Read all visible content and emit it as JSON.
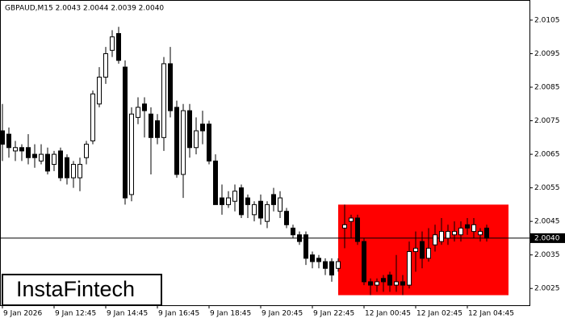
{
  "chart_data": {
    "type": "candlestick",
    "title": "GBPAUD,M15  2.0043 2.0044 2.0039 2.0040",
    "watermark": "InstaFintech",
    "categories": [
      "9 Jan 2026",
      null,
      null,
      null,
      null,
      null,
      null,
      null,
      "9 Jan 12:45",
      null,
      null,
      null,
      null,
      null,
      null,
      null,
      "9 Jan 14:45",
      null,
      null,
      null,
      null,
      null,
      null,
      null,
      "9 Jan 16:45",
      null,
      null,
      null,
      null,
      null,
      null,
      null,
      "9 Jan 18:45",
      null,
      null,
      null,
      null,
      null,
      null,
      null,
      "9 Jan 20:45",
      null,
      null,
      null,
      null,
      null,
      null,
      null,
      "9 Jan 22:45",
      null,
      null,
      null,
      null,
      null,
      null,
      null,
      "12 Jan 00:45",
      null,
      null,
      null,
      null,
      null,
      null,
      null,
      "12 Jan 02:45",
      null,
      null,
      null,
      null,
      null,
      null,
      null,
      "12 Jan 04:45",
      null,
      null,
      null
    ],
    "open": [
      2.0072,
      2.0071,
      2.0066,
      2.0067,
      2.0067,
      2.0065,
      2.0063,
      2.0065,
      2.0062,
      2.0066,
      2.0064,
      2.0058,
      2.0058,
      2.0064,
      2.0069,
      2.008,
      2.0088,
      2.0096,
      2.0101,
      2.0091,
      2.0053,
      2.0076,
      2.008,
      2.0077,
      2.0075,
      2.007,
      2.0092,
      2.0079,
      2.0059,
      2.0078,
      2.0067,
      2.0074,
      2.0074,
      2.0063,
      2.0052,
      2.005,
      2.0051,
      2.0055,
      2.0052,
      2.0047,
      2.0051,
      2.0045,
      2.0053,
      2.0048,
      2.0048,
      2.0043,
      2.0041,
      2.0041,
      2.0035,
      2.0034,
      2.0033,
      2.0033,
      2.0031,
      2.0043,
      2.0045,
      2.0046,
      2.0039,
      2.0027,
      2.0026,
      2.0028,
      2.0029,
      2.0026,
      2.0027,
      2.0026,
      2.0036,
      2.0039,
      2.0034,
      2.0038,
      2.0039,
      2.004,
      2.0041,
      2.0041,
      2.0044,
      2.0042,
      2.0041,
      2.0043
    ],
    "high": [
      2.008,
      2.0073,
      2.0069,
      2.0068,
      2.0071,
      2.0068,
      2.0068,
      2.0067,
      2.0066,
      2.0067,
      2.0065,
      2.0063,
      2.0064,
      2.0069,
      2.0084,
      2.0091,
      2.0097,
      2.0102,
      2.0103,
      2.0093,
      2.0079,
      2.0082,
      2.0082,
      2.0079,
      2.0077,
      2.0094,
      2.0097,
      2.0081,
      2.008,
      2.008,
      2.0076,
      2.0078,
      2.0075,
      2.0065,
      2.0056,
      2.0054,
      2.0056,
      2.0056,
      2.0053,
      2.0051,
      2.0053,
      2.0051,
      2.0055,
      2.0054,
      2.0049,
      2.0044,
      2.0042,
      2.0042,
      2.0036,
      2.0035,
      2.0034,
      2.0034,
      2.0034,
      2.005,
      2.0047,
      2.0047,
      2.004,
      2.0028,
      2.0028,
      2.0029,
      2.003,
      2.0035,
      2.0029,
      2.0039,
      2.0042,
      2.0042,
      2.0043,
      2.0044,
      2.0046,
      2.0044,
      2.0045,
      2.0045,
      2.0046,
      2.0046,
      2.0043,
      2.0044
    ],
    "low": [
      2.0063,
      2.0064,
      2.0063,
      2.0063,
      2.0062,
      2.0061,
      2.0062,
      2.0059,
      2.006,
      2.0057,
      2.0056,
      2.0055,
      2.0054,
      2.0062,
      2.0068,
      2.0079,
      2.0086,
      2.0094,
      2.0092,
      2.005,
      2.0051,
      2.0074,
      2.007,
      2.0059,
      2.0068,
      2.0066,
      2.0076,
      2.0058,
      2.0052,
      2.0064,
      2.0065,
      2.0068,
      2.0062,
      2.005,
      2.0047,
      2.0049,
      2.0048,
      2.0046,
      2.0046,
      2.0045,
      2.0044,
      2.0043,
      2.0048,
      2.0046,
      2.0043,
      2.004,
      2.0038,
      2.0032,
      2.0031,
      2.0031,
      2.0029,
      2.0027,
      2.003,
      2.0037,
      2.004,
      2.0038,
      2.0026,
      2.0023,
      2.0024,
      2.0024,
      2.0024,
      2.0024,
      2.0023,
      2.0025,
      2.003,
      2.0031,
      2.0033,
      2.0036,
      2.0038,
      2.0038,
      2.0039,
      2.0039,
      2.0041,
      2.004,
      2.0039,
      2.0039
    ],
    "close": [
      2.0068,
      2.0067,
      2.0067,
      2.0066,
      2.0064,
      2.0064,
      2.0065,
      2.006,
      2.0065,
      2.0058,
      2.0058,
      2.0062,
      2.0062,
      2.0068,
      2.0083,
      2.0088,
      2.0095,
      2.01,
      2.0093,
      2.0052,
      2.0077,
      2.0079,
      2.0078,
      2.007,
      2.007,
      2.0092,
      2.0078,
      2.0059,
      2.0078,
      2.0067,
      2.0072,
      2.0072,
      2.0063,
      2.005,
      2.005,
      2.0052,
      2.0054,
      2.0047,
      2.005,
      2.005,
      2.0046,
      2.005,
      2.005,
      2.0052,
      2.0044,
      2.0041,
      2.0039,
      2.0034,
      2.0033,
      2.0033,
      2.0031,
      2.0029,
      2.0033,
      2.0044,
      2.0046,
      2.0039,
      2.0027,
      2.0026,
      2.0027,
      2.0027,
      2.0026,
      2.0027,
      2.0026,
      2.0036,
      2.0037,
      2.0034,
      2.0037,
      2.0041,
      2.0042,
      2.0042,
      2.0042,
      2.0043,
      2.0043,
      2.0044,
      2.0042,
      2.004
    ],
    "up_color": "#ffffff",
    "down_color": "#000000",
    "zone": {
      "high": 2.005,
      "low": 2.0023,
      "color": "#ff0000"
    },
    "current_price": {
      "value": 2.004,
      "label": "2.0040"
    },
    "ylim": [
      2.002,
      2.0111
    ],
    "yticks": [
      2.0025,
      2.0035,
      2.0045,
      2.0055,
      2.0065,
      2.0075,
      2.0085,
      2.0095,
      2.0105
    ]
  }
}
